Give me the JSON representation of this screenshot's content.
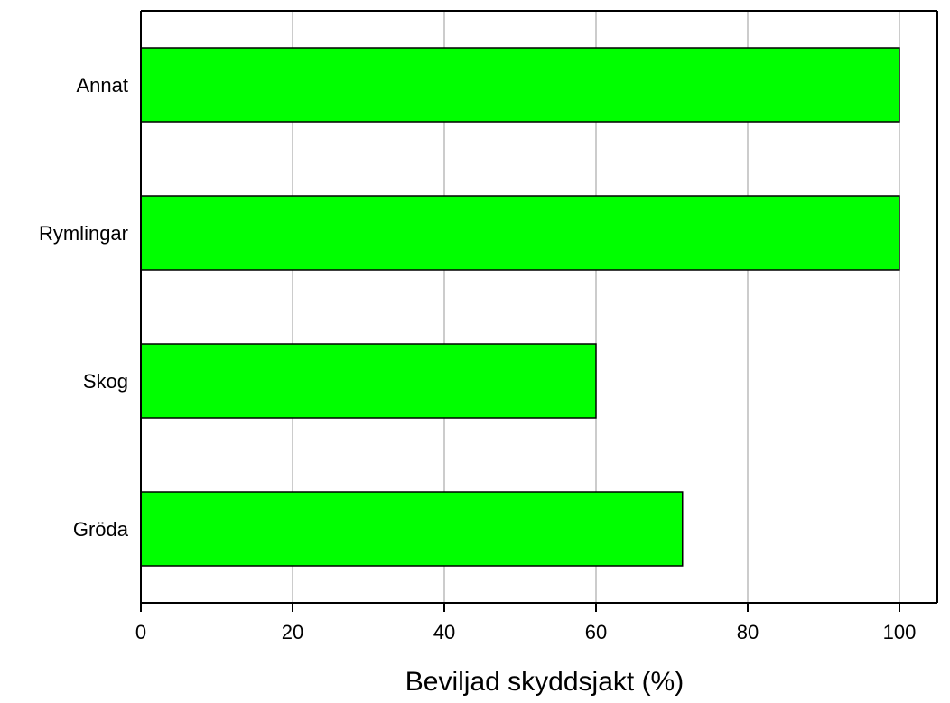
{
  "chart_data": {
    "type": "bar",
    "orientation": "horizontal",
    "categories": [
      "Annat",
      "Rymlingar",
      "Skog",
      "Gröda"
    ],
    "values": [
      100,
      100,
      60,
      71.4
    ],
    "xlabel": "Beviljad skyddsjakt (%)",
    "ylabel": "",
    "xlim": [
      0,
      105
    ],
    "xticks": [
      0,
      20,
      40,
      60,
      80,
      100
    ],
    "grid": true,
    "colors": {
      "bar_fill": "#00ff00",
      "bar_stroke": "#000000",
      "grid": "#999999",
      "axis": "#000000"
    }
  }
}
